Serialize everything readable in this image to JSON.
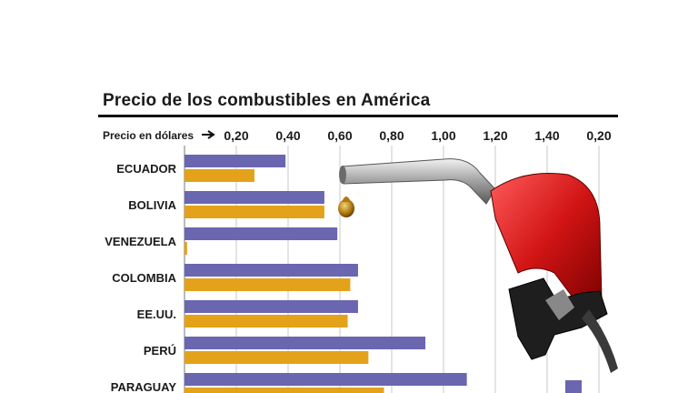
{
  "chart_data": {
    "type": "bar",
    "title": "Precio de los combustibles en América",
    "xlabel": "Precio en dólares",
    "orientation": "horizontal",
    "xlim": [
      0,
      1.6
    ],
    "x_tick_labels": [
      "0,20",
      "0,40",
      "0,60",
      "0,80",
      "1,00",
      "1,20",
      "1,40",
      "0,20"
    ],
    "categories": [
      "ECUADOR",
      "BOLIVIA",
      "VENEZUELA",
      "COLOMBIA",
      "EE.UU.",
      "PERÚ",
      "PARAGUAY"
    ],
    "series": [
      {
        "values": [
          0.39,
          0.54,
          0.59,
          0.67,
          0.67,
          0.93,
          1.09
        ]
      },
      {
        "values": [
          0.27,
          0.54,
          0.01,
          0.64,
          0.63,
          0.71,
          0.77
        ]
      }
    ],
    "grid": true,
    "colors": {
      "series1": "#6a66b0",
      "series2": "#e3a21a"
    }
  }
}
